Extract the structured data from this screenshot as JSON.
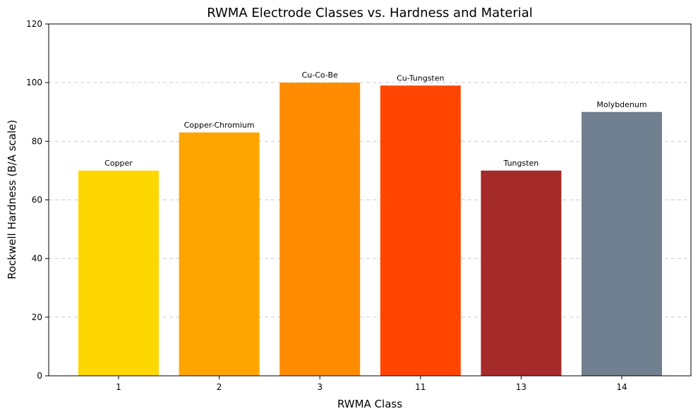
{
  "chart_data": {
    "type": "bar",
    "title": "RWMA Electrode Classes vs. Hardness and Material",
    "xlabel": "RWMA Class",
    "ylabel": "Rockwell Hardness (B/A scale)",
    "categories": [
      "1",
      "2",
      "3",
      "11",
      "13",
      "14"
    ],
    "values": [
      70,
      83,
      100,
      99,
      70,
      90
    ],
    "bar_labels": [
      "Copper",
      "Copper-Chromium",
      "Cu-Co-Be",
      "Cu-Tungsten",
      "Tungsten",
      "Molybdenum"
    ],
    "colors": [
      "#FFD700",
      "#FFA500",
      "#FF8C00",
      "#FF4500",
      "#A52A2A",
      "#708090"
    ],
    "ylim": [
      0,
      120
    ],
    "yticks": [
      "0",
      "20",
      "40",
      "60",
      "80",
      "100",
      "120"
    ],
    "grid": "y-dashed"
  }
}
